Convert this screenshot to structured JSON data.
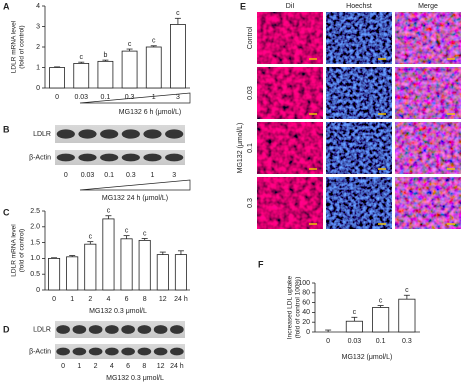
{
  "chart_data": [
    {
      "type": "bar",
      "panel": "A",
      "y_label": [
        "LDLR mRNA level",
        "(fold of control)"
      ],
      "x_label": "MG132 6 h (μmol/L)",
      "categories": [
        "0",
        "0.03",
        "0.1",
        "0.3",
        "1",
        "3"
      ],
      "values": [
        1,
        1.2,
        1.3,
        1.8,
        2.0,
        3.1
      ],
      "errors": [
        0.03,
        0.06,
        0.06,
        0.1,
        0.06,
        0.3
      ],
      "letters": [
        null,
        "c",
        "b",
        "c",
        "c",
        "c"
      ],
      "ylim": [
        0,
        4
      ],
      "yticks": [
        0,
        1,
        2,
        3,
        4
      ],
      "color": "#ffffff"
    },
    {
      "type": "bar",
      "panel": "C",
      "y_label": [
        "LDLR mRNA level",
        "(fold of control)"
      ],
      "x_label": "MG132 0.3 μmol/L",
      "categories": [
        "0",
        "1",
        "2",
        "4",
        "6",
        "8",
        "12",
        "24 h"
      ],
      "values": [
        1.0,
        1.05,
        1.45,
        2.25,
        1.62,
        1.57,
        1.12,
        1.12
      ],
      "errors": [
        0.02,
        0.04,
        0.08,
        0.1,
        0.1,
        0.06,
        0.08,
        0.12
      ],
      "letters": [
        null,
        null,
        "c",
        "c",
        "c",
        "c",
        null,
        null
      ],
      "ylim": [
        0,
        2.5
      ],
      "yticks": [
        0,
        0.5,
        {
          "value": 1,
          "label": "1.0"
        },
        1.5,
        {
          "value": 2,
          "label": "2.0"
        },
        2.5
      ],
      "color": "#ffffff"
    },
    {
      "type": "bar",
      "panel": "F",
      "y_label": [
        "Increased LDL uptake",
        "(fold of control 100%)"
      ],
      "x_label": "MG132 (μmol/L)",
      "categories": [
        "0",
        "0.03",
        "0.1",
        "0.3"
      ],
      "values": [
        0,
        22,
        50,
        67
      ],
      "errors": [
        4,
        8,
        4,
        8
      ],
      "letters": [
        null,
        "c",
        "c",
        "c"
      ],
      "ylim": [
        0,
        100
      ],
      "yticks": [
        0,
        20,
        40,
        60,
        80,
        100
      ],
      "color": "#ffffff"
    }
  ],
  "blots": [
    {
      "panel": "B",
      "rows": [
        "LDLR",
        "β-Actin"
      ],
      "lanes": [
        "0",
        "0.03",
        "0.1",
        "0.3",
        "1",
        "3"
      ],
      "x_label": "MG132 24 h (μmol/L)"
    },
    {
      "panel": "D",
      "rows": [
        "LDLR",
        "β-Actin"
      ],
      "lanes": [
        "0",
        "1",
        "2",
        "4",
        "6",
        "8",
        "12",
        "24 h"
      ],
      "x_label": "MG132 0.3 μmol/L"
    }
  ],
  "microscopy": {
    "panel": "E",
    "columns": [
      "DiI",
      "Hoechst",
      "Merge"
    ],
    "rows": [
      "Control",
      "0.03",
      "0.1",
      "0.3"
    ],
    "group_label": "MG132 (μmol/L)"
  }
}
